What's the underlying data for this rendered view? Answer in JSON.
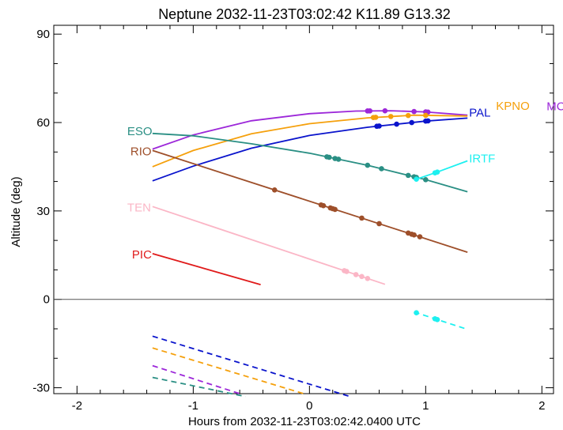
{
  "chart_data": {
    "type": "line",
    "title": "Neptune 2032-11-23T03:02:42  K11.89  G13.32",
    "xlabel": "Hours from 2032-11-23T03:02:42.0400 UTC",
    "ylabel": "Altitude (deg)",
    "xlim": [
      -2.2,
      2.1
    ],
    "ylim": [
      -32,
      93
    ],
    "xticks": [
      -2,
      -1,
      0,
      1,
      2
    ],
    "yticks": [
      -30,
      0,
      30,
      60,
      90
    ],
    "grid": false,
    "reference_line_y": 0,
    "series": [
      {
        "name": "MCD",
        "color": "#9c27d9",
        "label_points": [
          [
            1.36,
            62.5
          ]
        ],
        "solid": [
          [
            -1.35,
            51
          ],
          [
            -1.0,
            55.8
          ],
          [
            -0.5,
            60.6
          ],
          [
            0.0,
            63.0
          ],
          [
            0.4,
            63.9
          ],
          [
            0.7,
            64.0
          ],
          [
            1.0,
            63.6
          ],
          [
            1.36,
            62.5
          ]
        ],
        "dashed": [
          [
            -1.35,
            -22.5
          ],
          [
            -0.6,
            -32
          ]
        ],
        "markers": [
          0.5,
          0.52,
          0.65,
          0.9,
          1.0,
          1.02
        ]
      },
      {
        "name": "KPNO",
        "color": "#f5a00c",
        "label_points": [
          [
            1.36,
            62.2
          ]
        ],
        "solid": [
          [
            -1.35,
            45
          ],
          [
            -1.0,
            50.5
          ],
          [
            -0.5,
            56.2
          ],
          [
            0.0,
            59.6
          ],
          [
            0.5,
            61.6
          ],
          [
            0.9,
            62.5
          ],
          [
            1.36,
            62.2
          ]
        ],
        "dashed": [
          [
            -1.35,
            -16.5
          ],
          [
            -0.05,
            -32
          ]
        ],
        "markers": [
          0.55,
          0.57,
          0.7,
          0.85,
          1.0
        ]
      },
      {
        "name": "PAL",
        "color": "#0a14cc",
        "label_points": [
          [
            1.36,
            61.5
          ]
        ],
        "solid": [
          [
            -1.35,
            40.2
          ],
          [
            -1.0,
            45.2
          ],
          [
            -0.5,
            51.3
          ],
          [
            0.0,
            55.6
          ],
          [
            0.5,
            58.4
          ],
          [
            1.0,
            60.5
          ],
          [
            1.36,
            61.5
          ]
        ],
        "dashed": [
          [
            -1.35,
            -12.5
          ],
          [
            0.35,
            -33
          ]
        ],
        "markers": [
          0.58,
          0.6,
          0.75,
          0.88,
          1.0,
          1.02
        ]
      },
      {
        "name": "ESO",
        "color": "#2a8f84",
        "label_points": [
          [
            -1.35,
            56.3
          ]
        ],
        "solid": [
          [
            -1.35,
            56.3
          ],
          [
            -1.0,
            55.5
          ],
          [
            -0.5,
            52.8
          ],
          [
            0.0,
            49.6
          ],
          [
            0.5,
            45.5
          ],
          [
            1.0,
            40.6
          ],
          [
            1.36,
            36.5
          ]
        ],
        "dashed": [
          [
            -1.35,
            -26.5
          ],
          [
            -0.55,
            -33
          ]
        ],
        "markers": [
          0.15,
          0.17,
          0.22,
          0.25,
          0.5,
          0.62,
          0.85,
          0.9,
          0.92,
          1.0
        ]
      },
      {
        "name": "RIO",
        "color": "#9e4f2a",
        "label_points": [
          [
            -1.35,
            50.5
          ]
        ],
        "solid": [
          [
            -1.35,
            50.5
          ],
          [
            1.36,
            16
          ]
        ],
        "dashed": [],
        "markers": [
          -0.3,
          0.1,
          0.12,
          0.18,
          0.2,
          0.22,
          0.45,
          0.6,
          0.85,
          0.88,
          0.9,
          0.95
        ]
      },
      {
        "name": "TEN",
        "color": "#fbb6c6",
        "label_points": [
          [
            -1.35,
            31.5
          ]
        ],
        "solid": [
          [
            -1.35,
            31.5
          ],
          [
            0.65,
            5.1
          ]
        ],
        "dashed": [],
        "markers": [
          0.3,
          0.32,
          0.4,
          0.45,
          0.5
        ]
      },
      {
        "name": "PIC",
        "color": "#e01a1a",
        "label_points": [
          [
            -1.35,
            15.5
          ]
        ],
        "solid": [
          [
            -1.35,
            15.5
          ],
          [
            -0.42,
            5
          ]
        ],
        "dashed": [],
        "markers": []
      },
      {
        "name": "IRTF",
        "color": "#1df0f0",
        "label_points": [
          [
            1.36,
            47
          ]
        ],
        "solid": [
          [
            0.9,
            40.5
          ],
          [
            1.1,
            43.2
          ],
          [
            1.36,
            47
          ]
        ],
        "dashed": [
          [
            0.9,
            -4.3
          ],
          [
            1.36,
            -10.2
          ]
        ],
        "markers": [
          0.92,
          1.08,
          1.1
        ],
        "dashed_markers": [
          0.92,
          1.08,
          1.1
        ]
      }
    ]
  }
}
